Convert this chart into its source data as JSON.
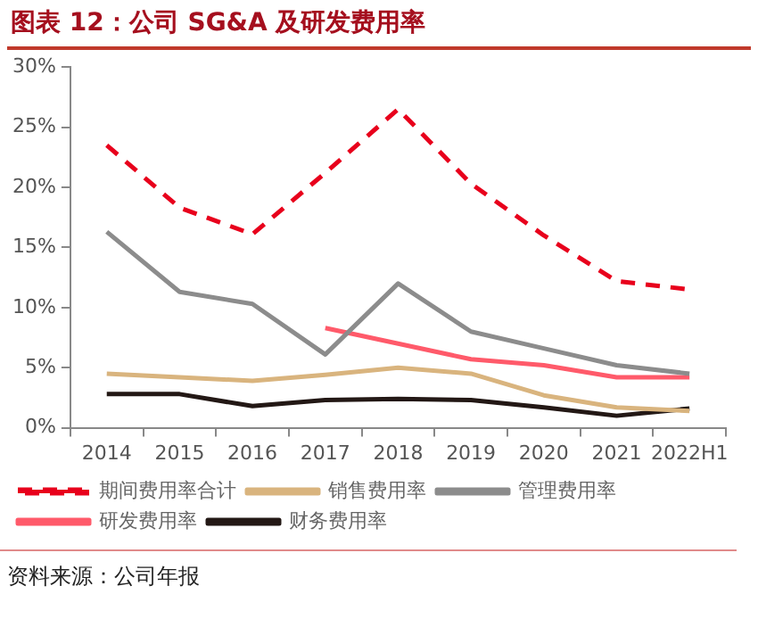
{
  "chart_data": {
    "type": "line",
    "title": "图表 12：公司 SG&A 及研发费用率",
    "annotations": [
      "资料来源：公司年报"
    ],
    "categories": [
      "2014",
      "2015",
      "2016",
      "2017",
      "2018",
      "2019",
      "2020",
      "2021",
      "2022H1"
    ],
    "ylim": [
      0,
      30
    ],
    "yticks": [
      {
        "value": 0,
        "label": "0%"
      },
      {
        "value": 5,
        "label": "5%"
      },
      {
        "value": 10,
        "label": "10%"
      },
      {
        "value": 15,
        "label": "15%"
      },
      {
        "value": 20,
        "label": "20%"
      },
      {
        "value": 25,
        "label": "25%"
      },
      {
        "value": 30,
        "label": "30%"
      }
    ],
    "grid": false,
    "legend": "bottom",
    "marker": "none",
    "series": [
      {
        "name": "期间费用率合计",
        "color": "#e8001c",
        "line_style": "dashed",
        "values": [
          23.5,
          18.3,
          16.1,
          21.2,
          26.5,
          20.3,
          16.0,
          12.2,
          11.5
        ]
      },
      {
        "name": "销售费用率",
        "color": "#d9b47e",
        "values": [
          4.5,
          4.2,
          3.9,
          4.4,
          5.0,
          4.5,
          2.7,
          1.7,
          1.4
        ]
      },
      {
        "name": "管理费用率",
        "color": "#8c8c8c",
        "values": [
          16.3,
          11.3,
          10.3,
          6.1,
          12.0,
          8.0,
          6.6,
          5.2,
          4.5
        ]
      },
      {
        "name": "研发费用率",
        "color": "#ff5a6a",
        "values": [
          null,
          null,
          null,
          8.3,
          7.0,
          5.7,
          5.2,
          4.2,
          4.2
        ]
      },
      {
        "name": "财务费用率",
        "color": "#231815",
        "values": [
          2.8,
          2.8,
          1.8,
          2.3,
          2.4,
          2.3,
          1.7,
          1.0,
          1.6
        ]
      }
    ]
  }
}
